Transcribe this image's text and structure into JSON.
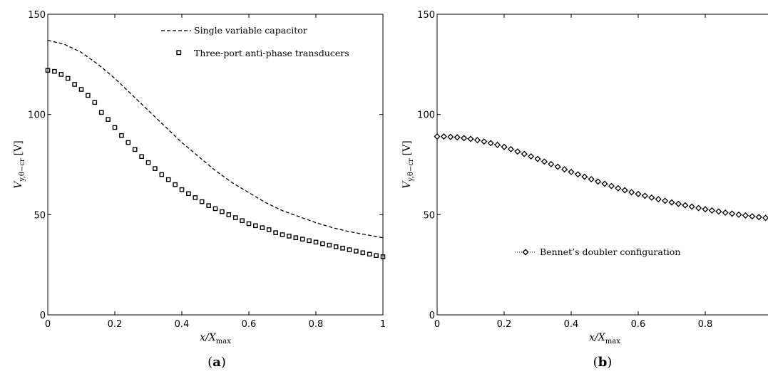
{
  "chart_data": [
    {
      "type": "line",
      "panel_label": "a",
      "xlabel": "x/X",
      "xlabel_sub": "max",
      "ylabel": "V",
      "ylabel_sub": "y,θ−cr",
      "ylabel_unit": "[V]",
      "xlim": [
        0,
        1
      ],
      "ylim": [
        0,
        150
      ],
      "xticks": [
        "0",
        "0.2",
        "0.4",
        "0.6",
        "0.8",
        "1"
      ],
      "yticks": [
        "0",
        "50",
        "100",
        "150"
      ],
      "legend_position": "top-right",
      "series": [
        {
          "name": "Single variable capacitor",
          "style": "dashed",
          "x": [
            0,
            0.05,
            0.1,
            0.15,
            0.2,
            0.25,
            0.3,
            0.35,
            0.4,
            0.45,
            0.5,
            0.55,
            0.6,
            0.65,
            0.7,
            0.75,
            0.8,
            0.85,
            0.9,
            0.95,
            1.0
          ],
          "y": [
            137,
            135,
            131,
            125,
            118,
            110,
            102,
            94,
            86,
            79,
            72,
            66,
            61,
            56,
            52,
            49,
            46,
            43.5,
            41.5,
            40,
            38.5
          ]
        },
        {
          "name": "Three-port anti-phase transducers",
          "style": "square",
          "x": [
            0,
            0.02,
            0.04,
            0.06,
            0.08,
            0.1,
            0.12,
            0.14,
            0.16,
            0.18,
            0.2,
            0.22,
            0.24,
            0.26,
            0.28,
            0.3,
            0.32,
            0.34,
            0.36,
            0.38,
            0.4,
            0.42,
            0.44,
            0.46,
            0.48,
            0.5,
            0.52,
            0.54,
            0.56,
            0.58,
            0.6,
            0.62,
            0.64,
            0.66,
            0.68,
            0.7,
            0.72,
            0.74,
            0.76,
            0.78,
            0.8,
            0.82,
            0.84,
            0.86,
            0.88,
            0.9,
            0.92,
            0.94,
            0.96,
            0.98,
            1.0
          ],
          "y": [
            122,
            121.5,
            120,
            118,
            115,
            112.5,
            109.5,
            106,
            101,
            97.5,
            93.5,
            89.5,
            86,
            82.5,
            79,
            76,
            73,
            70,
            67.5,
            65,
            62.5,
            60.5,
            58.5,
            56.5,
            54.5,
            53,
            51.5,
            50,
            48.5,
            47,
            45.5,
            44.5,
            43.5,
            42.5,
            41,
            40,
            39.3,
            38.5,
            37.8,
            37,
            36.3,
            35.5,
            34.8,
            34,
            33.3,
            32.5,
            31.8,
            31,
            30.3,
            29.6,
            29
          ]
        }
      ]
    },
    {
      "type": "line",
      "panel_label": "b",
      "xlabel": "x/X",
      "xlabel_sub": "max",
      "ylabel": "V",
      "ylabel_sub": "y,θ−cr",
      "ylabel_unit": "[V]",
      "xlim": [
        0,
        1
      ],
      "ylim": [
        0,
        150
      ],
      "xticks": [
        "0",
        "0.2",
        "0.4",
        "0.6",
        "0.8"
      ],
      "yticks": [
        "0",
        "50",
        "100",
        "150"
      ],
      "legend_position": "center-left",
      "series": [
        {
          "name": "Bennet’s doubler configuration",
          "style": "diamond",
          "x": [
            0,
            0.02,
            0.04,
            0.06,
            0.08,
            0.1,
            0.12,
            0.14,
            0.16,
            0.18,
            0.2,
            0.22,
            0.24,
            0.26,
            0.28,
            0.3,
            0.32,
            0.34,
            0.36,
            0.38,
            0.4,
            0.42,
            0.44,
            0.46,
            0.48,
            0.5,
            0.52,
            0.54,
            0.56,
            0.58,
            0.6,
            0.62,
            0.64,
            0.66,
            0.68,
            0.7,
            0.72,
            0.74,
            0.76,
            0.78,
            0.8,
            0.82,
            0.84,
            0.86,
            0.88,
            0.9,
            0.92,
            0.94,
            0.96,
            0.98,
            1.0
          ],
          "y": [
            89,
            89,
            88.8,
            88.6,
            88.2,
            87.8,
            87.2,
            86.5,
            85.7,
            84.8,
            83.8,
            82.7,
            81.5,
            80.3,
            79.1,
            77.8,
            76.5,
            75.2,
            73.9,
            72.6,
            71.3,
            70.1,
            68.9,
            67.7,
            66.5,
            65.4,
            64.3,
            63.2,
            62.2,
            61.2,
            60.3,
            59.4,
            58.5,
            57.7,
            56.9,
            56.1,
            55.4,
            54.7,
            54.0,
            53.3,
            52.7,
            52.1,
            51.6,
            51.0,
            50.5,
            50.0,
            49.6,
            49.2,
            48.8,
            48.4,
            48
          ]
        }
      ]
    }
  ]
}
